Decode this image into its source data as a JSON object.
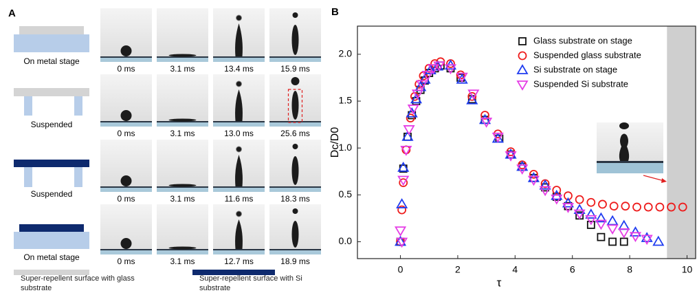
{
  "panel_a": {
    "label": "A",
    "rows": [
      {
        "label": "On metal stage",
        "times": [
          "0 ms",
          "3.1 ms",
          "13.4 ms",
          "15.9 ms"
        ]
      },
      {
        "label": "Suspended",
        "times": [
          "0 ms",
          "3.1 ms",
          "13.0 ms",
          "25.6 ms"
        ]
      },
      {
        "label": "Suspended",
        "times": [
          "0 ms",
          "3.1 ms",
          "11.6 ms",
          "18.3 ms"
        ]
      },
      {
        "label": "On metal stage",
        "times": [
          "0 ms",
          "3.1 ms",
          "12.7 ms",
          "18.9 ms"
        ]
      }
    ],
    "legend": [
      "Super-repellent surface with glass substrate",
      "Super-repellent surface with Si substrate"
    ]
  },
  "chart_data": {
    "type": "scatter",
    "panel_label": "B",
    "x_label": "τ",
    "y_label": "Dc/D0",
    "xlim": [
      -1.5,
      10.3
    ],
    "ylim": [
      -0.18,
      2.3
    ],
    "xticks": [
      0,
      2,
      4,
      6,
      8,
      10
    ],
    "yticks": [
      {
        "value": 0,
        "label": "0.0"
      },
      {
        "value": 0.5,
        "label": "0.5"
      },
      {
        "value": 1,
        "label": "1.0"
      },
      {
        "value": 1.5,
        "label": "1.5"
      },
      {
        "value": 2,
        "label": "2.0"
      }
    ],
    "grid": false,
    "legend": "top-right",
    "shaded_region": [
      9.3,
      10.3
    ],
    "series": [
      {
        "name": "Glass substrate on stage",
        "color": "#111111",
        "marker": "square",
        "x": [
          0,
          0.1,
          0.25,
          0.4,
          0.55,
          0.7,
          0.85,
          1.0,
          1.2,
          1.4,
          1.75,
          2.1,
          2.5,
          2.95,
          3.45,
          3.85,
          4.25,
          4.65,
          5.05,
          5.45,
          5.85,
          6.25,
          6.65,
          7.0,
          7.4,
          7.8
        ],
        "values": [
          0,
          0.78,
          1.12,
          1.35,
          1.5,
          1.62,
          1.72,
          1.8,
          1.85,
          1.88,
          1.85,
          1.75,
          1.52,
          1.3,
          1.1,
          0.93,
          0.8,
          0.68,
          0.58,
          0.48,
          0.38,
          0.28,
          0.18,
          0.05,
          0,
          0
        ]
      },
      {
        "name": "Suspended glass substrate",
        "color": "#ee1c1c",
        "marker": "circle",
        "x": [
          0,
          0.05,
          0.1,
          0.2,
          0.35,
          0.5,
          0.65,
          0.8,
          1.0,
          1.2,
          1.4,
          1.75,
          2.1,
          2.5,
          2.95,
          3.4,
          3.85,
          4.25,
          4.65,
          5.05,
          5.45,
          5.85,
          6.25,
          6.65,
          7.05,
          7.45,
          7.85,
          8.25,
          8.65,
          9.05,
          9.45,
          9.85
        ],
        "values": [
          0,
          0.34,
          0.63,
          0.98,
          1.32,
          1.55,
          1.68,
          1.77,
          1.85,
          1.9,
          1.92,
          1.9,
          1.78,
          1.55,
          1.35,
          1.15,
          0.96,
          0.82,
          0.72,
          0.62,
          0.55,
          0.49,
          0.45,
          0.42,
          0.4,
          0.38,
          0.38,
          0.37,
          0.37,
          0.37,
          0.37,
          0.37
        ]
      },
      {
        "name": "Si substrate on stage",
        "color": "#1f3cf0",
        "marker": "triangle",
        "x": [
          0,
          0.05,
          0.1,
          0.25,
          0.4,
          0.55,
          0.7,
          0.85,
          1.05,
          1.3,
          1.75,
          2.15,
          2.5,
          2.95,
          3.4,
          3.85,
          4.25,
          4.65,
          5.05,
          5.45,
          5.85,
          6.25,
          6.65,
          7.0,
          7.4,
          7.8,
          8.2,
          8.6,
          9.0
        ],
        "values": [
          0,
          0.4,
          0.79,
          1.12,
          1.37,
          1.52,
          1.65,
          1.73,
          1.83,
          1.87,
          1.88,
          1.73,
          1.51,
          1.3,
          1.1,
          0.93,
          0.8,
          0.68,
          0.6,
          0.49,
          0.41,
          0.34,
          0.29,
          0.25,
          0.22,
          0.17,
          0.1,
          0.04,
          0
        ]
      },
      {
        "name": "Suspended Si substrate",
        "color": "#e53ee5",
        "marker": "triangle-down",
        "x": [
          0,
          0.05,
          0.1,
          0.2,
          0.3,
          0.45,
          0.6,
          0.75,
          0.95,
          1.15,
          1.35,
          1.75,
          2.15,
          2.55,
          3.0,
          3.4,
          3.85,
          4.25,
          4.65,
          5.05,
          5.45,
          5.85,
          6.25,
          6.65,
          7.0,
          7.4,
          7.8,
          8.2,
          8.6
        ],
        "values": [
          0.12,
          0,
          0.66,
          0.98,
          1.2,
          1.42,
          1.58,
          1.68,
          1.78,
          1.85,
          1.88,
          1.85,
          1.76,
          1.58,
          1.28,
          1.12,
          0.92,
          0.78,
          0.66,
          0.55,
          0.46,
          0.37,
          0.3,
          0.24,
          0.19,
          0.14,
          0.1,
          0.06,
          0.03
        ]
      }
    ]
  }
}
